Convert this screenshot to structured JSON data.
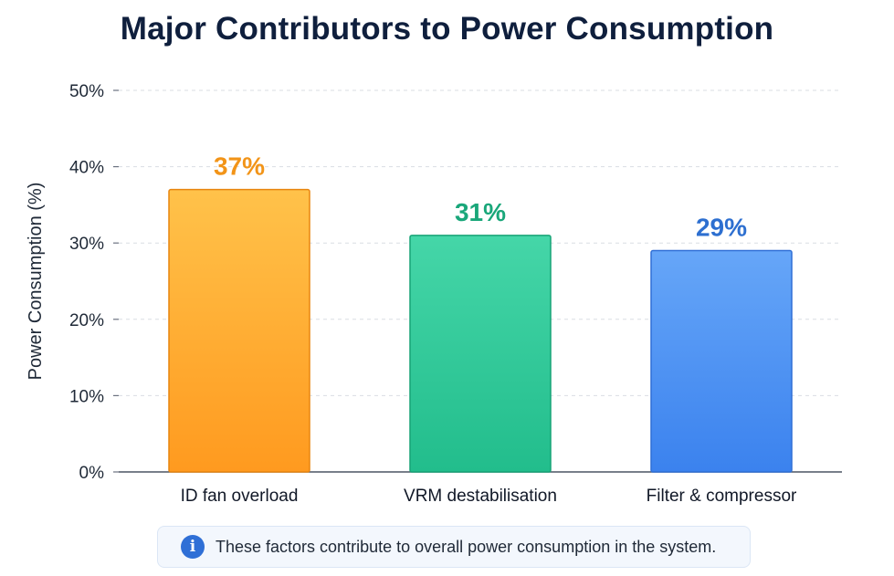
{
  "chart_data": {
    "type": "bar",
    "title": "Major Contributors to Power Consumption",
    "ylabel": "Power Consumption (%)",
    "xlabel": "",
    "categories": [
      "ID fan overload",
      "VRM destabilisation",
      "Filter & compressor"
    ],
    "values": [
      37,
      31,
      29
    ],
    "value_labels": [
      "37%",
      "31%",
      "29%"
    ],
    "ylim": [
      0,
      50
    ],
    "yticks": [
      {
        "value": 0,
        "label": "0%"
      },
      {
        "value": 10,
        "label": "10%"
      },
      {
        "value": 20,
        "label": "20%"
      },
      {
        "value": 30,
        "label": "30%"
      },
      {
        "value": 40,
        "label": "40%"
      },
      {
        "value": 50,
        "label": "50%"
      }
    ],
    "grid": true,
    "bar_colors": [
      {
        "top": "#ffc24a",
        "bottom": "#ff9a1f",
        "stroke": "#e8850f",
        "label": "#f29418"
      },
      {
        "top": "#45d6a8",
        "bottom": "#22bd8c",
        "stroke": "#17a376",
        "label": "#1aa77a"
      },
      {
        "top": "#66a6f8",
        "bottom": "#3b82ee",
        "stroke": "#2f6fd6",
        "label": "#2d6fd0"
      }
    ]
  },
  "note": {
    "icon": "info-icon",
    "icon_glyph": "i",
    "text": "These factors contribute to overall power consumption in the system."
  }
}
